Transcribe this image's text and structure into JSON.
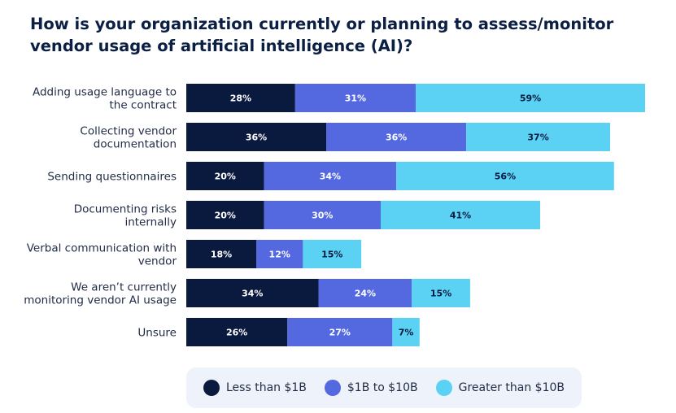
{
  "chart_data": {
    "type": "bar",
    "orientation": "horizontal",
    "stacked": true,
    "title": "How is your organization currently or planning to assess/monitor vendor usage of artificial intelligence (AI)?",
    "xlabel": "",
    "ylabel": "",
    "grid": false,
    "legend_position": "bottom",
    "value_suffix": "%",
    "categories": [
      [
        "Adding usage language to",
        "the contract"
      ],
      [
        "Collecting vendor",
        "documentation"
      ],
      [
        "Sending questionnaires"
      ],
      [
        "Documenting risks",
        "internally"
      ],
      [
        "Verbal communication with",
        "vendor"
      ],
      [
        "We aren’t currently",
        "monitoring vendor AI usage"
      ],
      [
        "Unsure"
      ]
    ],
    "series": [
      {
        "name": "Less than $1B",
        "color": "#0a1a3f",
        "text_color": "#ffffff",
        "values": [
          28,
          36,
          20,
          20,
          18,
          34,
          26
        ]
      },
      {
        "name": "$1B to $10B",
        "color": "#5468df",
        "text_color": "#ffffff",
        "values": [
          31,
          36,
          34,
          30,
          12,
          24,
          27
        ]
      },
      {
        "name": "Greater than $10B",
        "color": "#5bd2f4",
        "text_color": "#0a1a3f",
        "values": [
          59,
          37,
          56,
          41,
          15,
          15,
          7
        ]
      }
    ]
  }
}
